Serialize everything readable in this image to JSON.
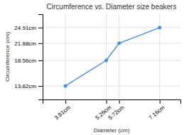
{
  "chart_data": {
    "type": "line",
    "title": "Circumference vs. Diameter size beakers",
    "xlabel": "Diameter (cm)",
    "ylabel": "Circumference (cm)",
    "x": [
      3.81,
      5.26,
      5.72,
      7.16
    ],
    "values": [
      13.62,
      18.56,
      21.88,
      24.91
    ],
    "color": "#4a90d9",
    "marker": "circle",
    "xlim": [
      3.0,
      7.9
    ],
    "ylim": [
      11.0,
      27.5
    ],
    "xticks": [
      {
        "value": 3.81,
        "label": "3.81cm"
      },
      {
        "value": 5.26,
        "label": "5.26cm"
      },
      {
        "value": 5.72,
        "label": "5.72cm"
      },
      {
        "value": 7.16,
        "label": "7.16cm"
      }
    ],
    "yticks": [
      {
        "value": 13.62,
        "label": "13.62cm"
      },
      {
        "value": 18.56,
        "label": "18.56cm"
      },
      {
        "value": 21.88,
        "label": "21.88cm"
      },
      {
        "value": 24.91,
        "label": "24.91cm"
      }
    ],
    "grid": true
  }
}
